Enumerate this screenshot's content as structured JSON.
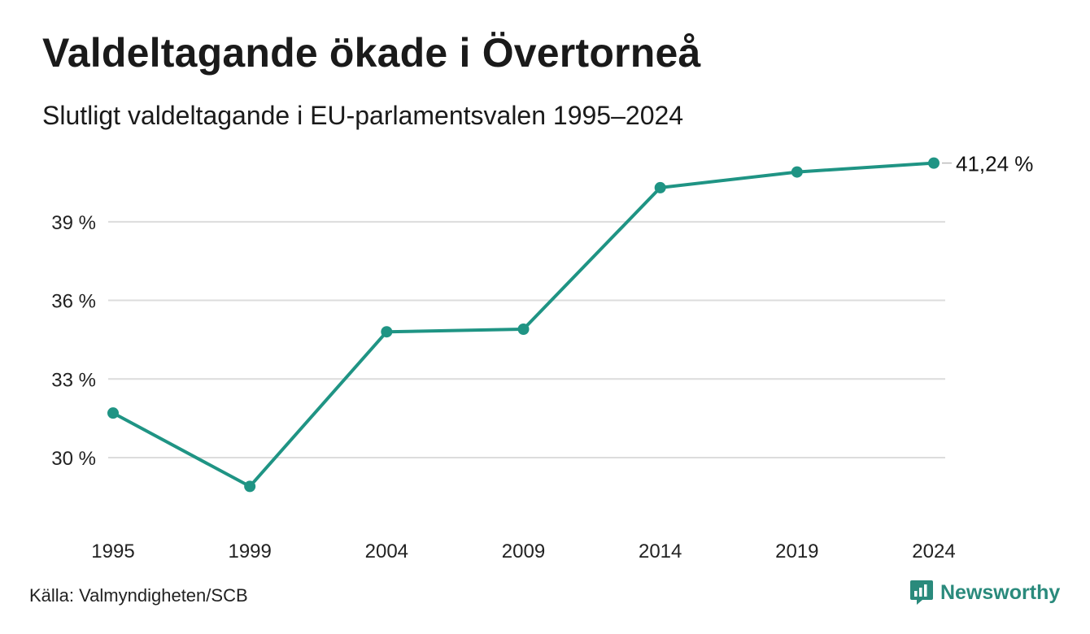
{
  "title": "Valdeltagande ökade i Övertorneå",
  "subtitle": "Slutligt valdeltagande i EU-parlamentsvalen 1995–2024",
  "source": "Källa: Valmyndigheten/SCB",
  "brand": {
    "name": "Newsworthy",
    "icon": "newsworthy-logo-icon",
    "color": "#2a8a7c"
  },
  "chart_data": {
    "type": "line",
    "x": [
      "1995",
      "1999",
      "2004",
      "2009",
      "2014",
      "2019",
      "2024"
    ],
    "series": [
      {
        "values": [
          31.7,
          28.9,
          34.8,
          34.9,
          40.3,
          40.9,
          41.24
        ],
        "color": "#1f9484"
      }
    ],
    "yticks": [
      30,
      33,
      36,
      39
    ],
    "ytick_labels": [
      "30 %",
      "33 %",
      "36 %",
      "39 %"
    ],
    "ylim": [
      27.3,
      42.5
    ],
    "end_label": "41,24 %",
    "grid": true,
    "xlabel": "",
    "ylabel": ""
  }
}
